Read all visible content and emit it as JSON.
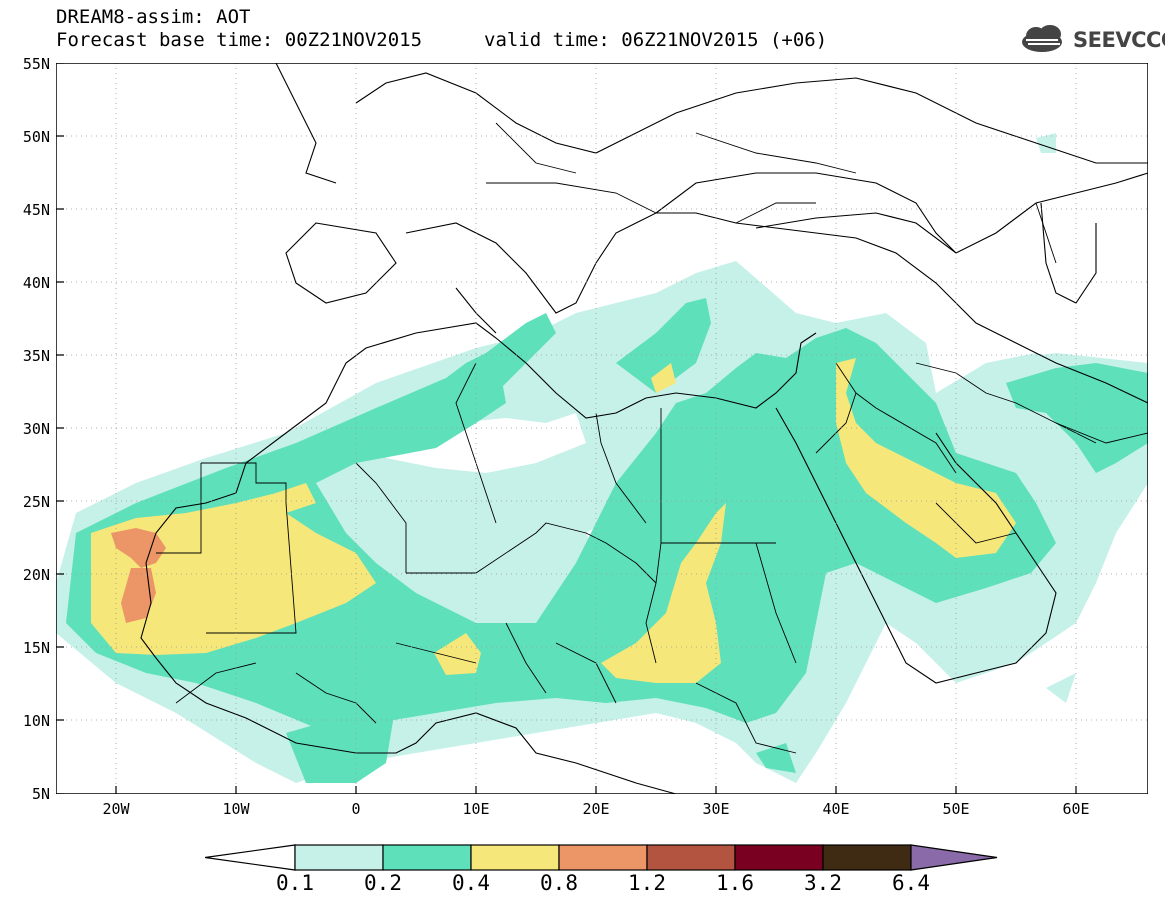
{
  "header": {
    "title_line1": "DREAM8-assim: AOT",
    "title_line2": "Forecast base time: 00Z21NOV2015",
    "valid_time": "valid time: 06Z21NOV2015 (+06)",
    "logo_text": "SEEVCCC",
    "logo_icon": "cloud-logo-icon"
  },
  "map": {
    "latitude_labels": [
      "55N",
      "50N",
      "45N",
      "40N",
      "35N",
      "30N",
      "25N",
      "20N",
      "15N",
      "10N",
      "5N"
    ],
    "longitude_labels": [
      "20W",
      "10W",
      "0",
      "10E",
      "20E",
      "30E",
      "40E",
      "50E",
      "60E"
    ]
  },
  "colorbar": {
    "labels": [
      "0.1",
      "0.2",
      "0.4",
      "0.8",
      "1.2",
      "1.6",
      "3.2",
      "6.4"
    ],
    "colors": [
      "#ffffff",
      "#c6f1e9",
      "#5ee0bb",
      "#f6e77a",
      "#ec9567",
      "#b2543f",
      "#7a0022",
      "#3f2b14",
      "#8a6aa8"
    ]
  },
  "palette": {
    "aot_0_1": "#c6f1e9",
    "aot_0_2": "#5ee0bb",
    "aot_0_4": "#f6e77a",
    "aot_0_8": "#ec9567"
  }
}
